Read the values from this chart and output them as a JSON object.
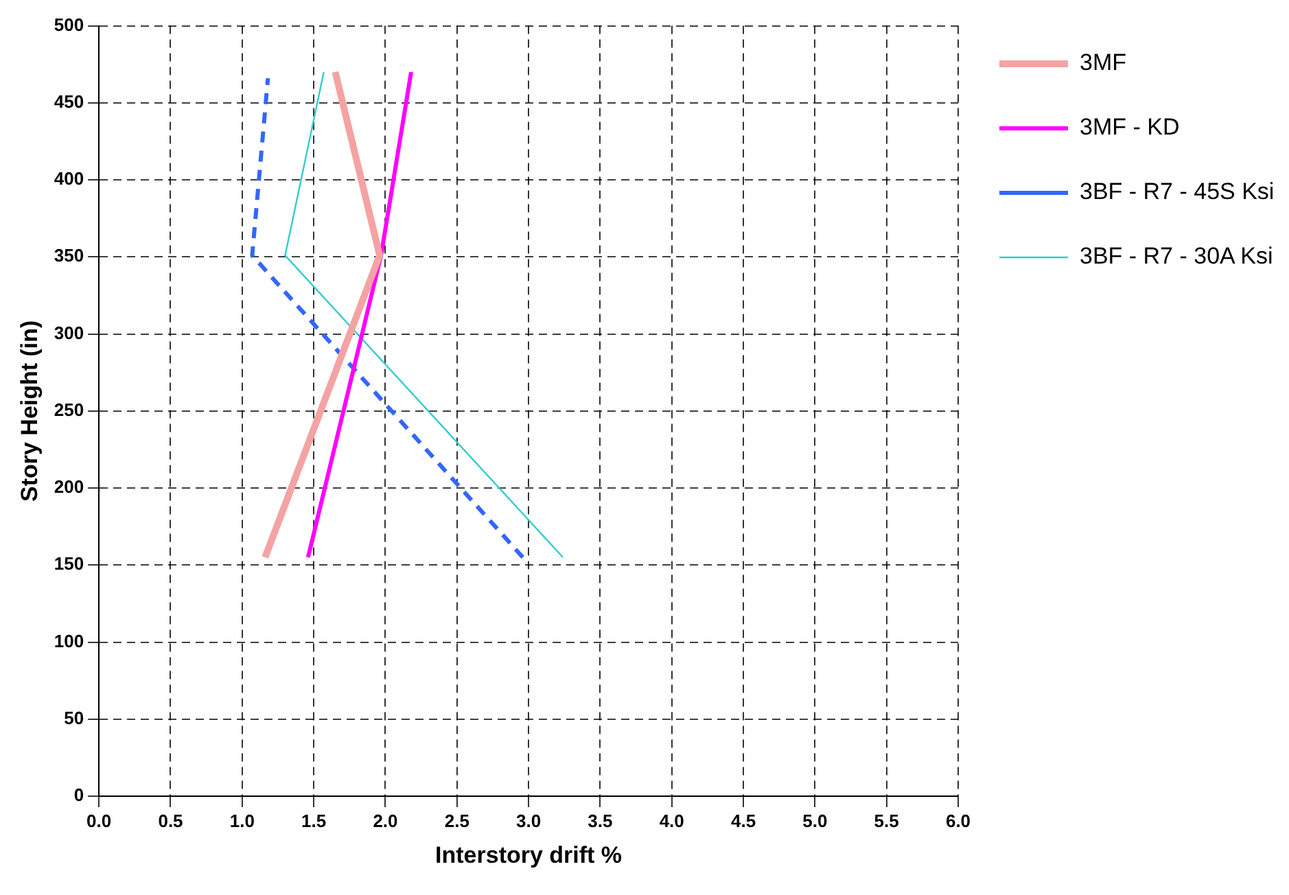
{
  "chart_data": {
    "type": "line",
    "xlabel": "Interstory drift %",
    "ylabel": "Story Height (in)",
    "xlim": [
      0,
      6
    ],
    "xticks": [
      {
        "value": 0,
        "label": "0.0"
      },
      {
        "value": 0.5,
        "label": "0.5"
      },
      {
        "value": 1,
        "label": "1.0"
      },
      {
        "value": 1.5,
        "label": "1.5"
      },
      {
        "value": 2,
        "label": "2.0"
      },
      {
        "value": 2.5,
        "label": "2.5"
      },
      {
        "value": 3,
        "label": "3.0"
      },
      {
        "value": 3.5,
        "label": "3.5"
      },
      {
        "value": 4,
        "label": "4.0"
      },
      {
        "value": 4.5,
        "label": "4.5"
      },
      {
        "value": 5,
        "label": "5.0"
      },
      {
        "value": 5.5,
        "label": "5.5"
      },
      {
        "value": 6,
        "label": "6.0"
      }
    ],
    "ylim": [
      0,
      500
    ],
    "yticks": [
      0,
      50,
      100,
      150,
      200,
      250,
      300,
      350,
      400,
      450,
      500
    ],
    "grid": true,
    "legend": "top right",
    "marker": "none",
    "series": [
      {
        "name": "3MF",
        "color": "#f4a3a3",
        "line_style": "solid",
        "x": [
          1.16,
          1.96,
          1.65
        ],
        "values": [
          155,
          351,
          470
        ]
      },
      {
        "name": "3MF - KD",
        "color": "#ff00ff",
        "line_style": "solid",
        "x": [
          1.46,
          1.97,
          2.18
        ],
        "values": [
          155,
          351,
          470
        ]
      },
      {
        "name": "3BF - R7 - 45S Ksi",
        "color": "#3366ff",
        "line_style": "dashed",
        "x": [
          2.96,
          1.07,
          1.18
        ],
        "values": [
          155,
          351,
          466
        ]
      },
      {
        "name": "3BF - R7 - 30A Ksi",
        "color": "#33cccc",
        "line_style": "solid",
        "x": [
          3.24,
          1.3,
          1.57
        ],
        "values": [
          155,
          351,
          470
        ]
      }
    ]
  }
}
